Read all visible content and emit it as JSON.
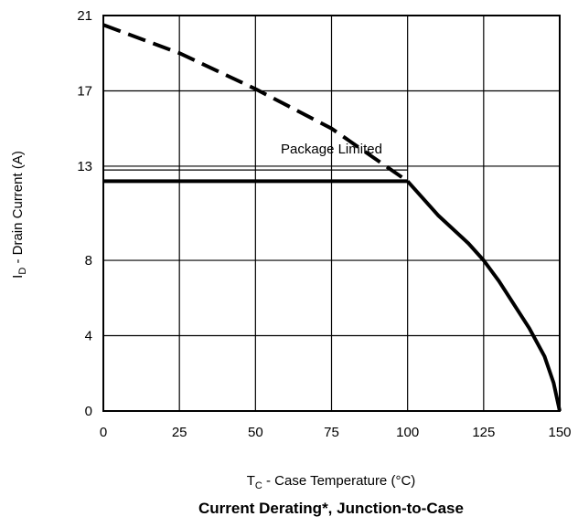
{
  "chart_data": {
    "type": "line",
    "title": "Current Derating*, Junction-to-Case",
    "xlabel": {
      "main": "T",
      "sub": "C",
      "rest": " - Case Temperature (°C)"
    },
    "ylabel": {
      "main": "I",
      "sub": "D",
      "rest": " - Drain Current (A)"
    },
    "xlim": [
      0,
      150
    ],
    "ylim": [
      0,
      21
    ],
    "x_ticks": [
      0,
      25,
      50,
      75,
      100,
      125,
      150
    ],
    "y_ticks": [
      0,
      4,
      8,
      13,
      17,
      21
    ],
    "grid": true,
    "annotations": [
      {
        "text": "Package Limited",
        "x": 75,
        "y": 13
      }
    ],
    "series": [
      {
        "style": "dashed",
        "x": [
          0,
          25,
          50,
          75,
          100
        ],
        "y": [
          20.5,
          19.0,
          17.1,
          15.0,
          12.2
        ]
      },
      {
        "style": "solid",
        "x": [
          100,
          110,
          120,
          125,
          130,
          140,
          145,
          148,
          150
        ],
        "y": [
          12.2,
          10.4,
          8.9,
          8.0,
          6.9,
          4.4,
          2.9,
          1.5,
          0
        ]
      },
      {
        "style": "solid",
        "x": [
          0,
          100
        ],
        "y": [
          12.2,
          12.2
        ]
      },
      {
        "style": "thin",
        "x": [
          0,
          100
        ],
        "y": [
          12.8,
          12.8
        ]
      }
    ]
  }
}
